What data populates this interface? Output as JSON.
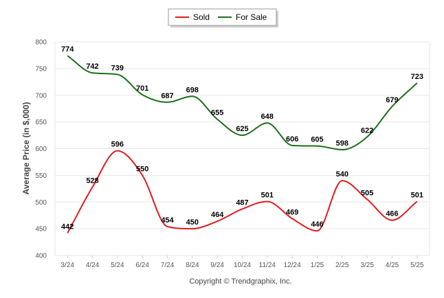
{
  "chart_data": {
    "type": "line",
    "categories": [
      "3/24",
      "4/24",
      "5/24",
      "6/24",
      "7/24",
      "8/24",
      "9/24",
      "10/24",
      "11/24",
      "12/24",
      "1/25",
      "2/25",
      "3/25",
      "4/25",
      "5/25"
    ],
    "ylabel": "Average Price (in $,000)",
    "ylim": [
      400,
      800
    ],
    "yticks": [
      "400",
      "450",
      "500",
      "550",
      "600",
      "650",
      "700",
      "750",
      "800"
    ],
    "grid": true,
    "legend_position": "top-center",
    "series": [
      {
        "name": "Sold",
        "color": "#e31a1c",
        "values": [
          442,
          528,
          596,
          550,
          454,
          450,
          464,
          487,
          501,
          469,
          446,
          540,
          505,
          466,
          501
        ]
      },
      {
        "name": "For Sale",
        "color": "#1a6e1a",
        "values": [
          774,
          742,
          739,
          701,
          687,
          698,
          655,
          625,
          648,
          606,
          605,
          598,
          622,
          679,
          723
        ]
      }
    ]
  },
  "footer": {
    "copyright": "Copyright © Trendgraphix, Inc."
  }
}
